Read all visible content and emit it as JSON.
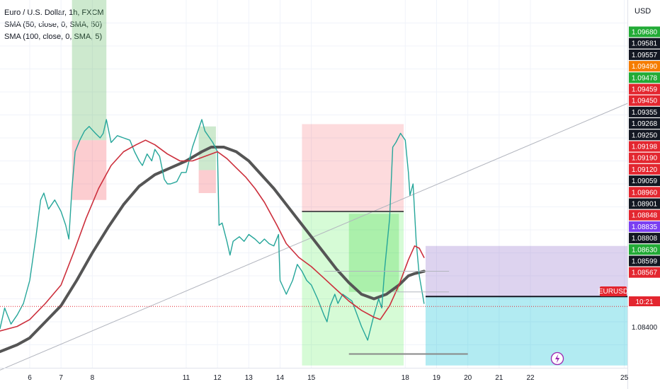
{
  "legend": {
    "symbol": "Euro / U.S. Dollar, 1h, FXCM",
    "sma1": "SMA (50, close, 0, SMA, 50)",
    "sma2": "SMA (100, close, 0, SMA, 5)"
  },
  "currency": "USD",
  "chart_data": {
    "type": "line",
    "title": "Euro / U.S. Dollar, 1h, FXCM",
    "ylim": [
      1.083,
      1.099
    ],
    "x_ticks": [
      {
        "t": 6,
        "label": "6"
      },
      {
        "t": 7,
        "label": "7"
      },
      {
        "t": 8,
        "label": "8"
      },
      {
        "t": 11,
        "label": "11"
      },
      {
        "t": 12,
        "label": "12"
      },
      {
        "t": 13,
        "label": "13"
      },
      {
        "t": 14,
        "label": "14"
      },
      {
        "t": 15,
        "label": "15"
      },
      {
        "t": 18,
        "label": "18"
      },
      {
        "t": 19,
        "label": "19"
      },
      {
        "t": 20,
        "label": "20"
      },
      {
        "t": 21,
        "label": "21"
      },
      {
        "t": 22,
        "label": "22"
      },
      {
        "t": 25,
        "label": "25"
      }
    ],
    "x_range": [
      5.05,
      25.1
    ],
    "price_series": {
      "name": "EURUSD",
      "color": "#26a69a",
      "points": [
        [
          5.05,
          1.0847
        ],
        [
          5.2,
          1.0856
        ],
        [
          5.4,
          1.0849
        ],
        [
          5.6,
          1.0853
        ],
        [
          5.8,
          1.0858
        ],
        [
          6.0,
          1.0868
        ],
        [
          6.2,
          1.0887
        ],
        [
          6.35,
          1.0903
        ],
        [
          6.45,
          1.0906
        ],
        [
          6.6,
          1.0899
        ],
        [
          6.8,
          1.0903
        ],
        [
          7.0,
          1.0898
        ],
        [
          7.15,
          1.0892
        ],
        [
          7.25,
          1.0886
        ],
        [
          7.35,
          1.0908
        ],
        [
          7.45,
          1.0924
        ],
        [
          7.6,
          1.0929
        ],
        [
          7.75,
          1.0933
        ],
        [
          7.9,
          1.0935
        ],
        [
          8.1,
          1.0932
        ],
        [
          8.25,
          1.093
        ],
        [
          8.35,
          1.0932
        ],
        [
          8.45,
          1.0938
        ],
        [
          8.6,
          1.0928
        ],
        [
          8.8,
          1.0931
        ],
        [
          9.0,
          1.093
        ],
        [
          9.2,
          1.0929
        ],
        [
          9.35,
          1.0924
        ],
        [
          9.5,
          1.092
        ],
        [
          9.6,
          1.0918
        ],
        [
          9.75,
          1.0923
        ],
        [
          9.9,
          1.092
        ],
        [
          10.0,
          1.0925
        ],
        [
          10.15,
          1.0922
        ],
        [
          10.3,
          1.0912
        ],
        [
          10.4,
          1.091
        ],
        [
          10.5,
          1.091
        ],
        [
          10.7,
          1.0911
        ],
        [
          10.85,
          1.0915
        ],
        [
          11.0,
          1.0915
        ],
        [
          11.2,
          1.0926
        ],
        [
          11.4,
          1.0934
        ],
        [
          11.5,
          1.0938
        ],
        [
          11.6,
          1.0933
        ],
        [
          11.75,
          1.093
        ],
        [
          11.85,
          1.0928
        ],
        [
          12.0,
          1.0924
        ],
        [
          12.05,
          1.0892
        ],
        [
          12.15,
          1.0893
        ],
        [
          12.3,
          1.0885
        ],
        [
          12.4,
          1.0879
        ],
        [
          12.5,
          1.0885
        ],
        [
          12.7,
          1.0887
        ],
        [
          12.85,
          1.0885
        ],
        [
          13.0,
          1.0888
        ],
        [
          13.2,
          1.0886
        ],
        [
          13.35,
          1.0884
        ],
        [
          13.5,
          1.0886
        ],
        [
          13.65,
          1.0884
        ],
        [
          13.8,
          1.0883
        ],
        [
          13.95,
          1.0888
        ],
        [
          14.0,
          1.0868
        ],
        [
          14.2,
          1.0862
        ],
        [
          14.4,
          1.0868
        ],
        [
          14.55,
          1.0875
        ],
        [
          14.7,
          1.0872
        ],
        [
          14.85,
          1.0868
        ],
        [
          15.0,
          1.0866
        ],
        [
          15.2,
          1.086
        ],
        [
          15.4,
          1.0853
        ],
        [
          15.5,
          1.085
        ],
        [
          15.6,
          1.0857
        ],
        [
          15.75,
          1.0862
        ],
        [
          15.85,
          1.0858
        ],
        [
          16.0,
          1.0862
        ],
        [
          16.3,
          1.0859
        ],
        [
          16.6,
          1.0848
        ],
        [
          16.8,
          1.0842
        ],
        [
          17.0,
          1.0853
        ],
        [
          17.15,
          1.086
        ],
        [
          17.25,
          1.0856
        ],
        [
          17.35,
          1.0874
        ],
        [
          17.5,
          1.0895
        ],
        [
          17.6,
          1.0926
        ],
        [
          17.7,
          1.0928
        ],
        [
          17.85,
          1.0932
        ],
        [
          18.0,
          1.0929
        ],
        [
          18.1,
          1.0915
        ],
        [
          18.15,
          1.0905
        ],
        [
          18.25,
          1.091
        ],
        [
          18.35,
          1.0885
        ],
        [
          18.45,
          1.087
        ],
        [
          18.55,
          1.0862
        ],
        [
          18.6,
          1.0858
        ]
      ]
    },
    "sma_red": {
      "name": "SMA (50, close, 0, SMA, 50)",
      "color": "#cc2f3c",
      "points": [
        [
          5.05,
          1.0846
        ],
        [
          5.6,
          1.0848
        ],
        [
          6.0,
          1.0851
        ],
        [
          6.5,
          1.0858
        ],
        [
          7.0,
          1.0866
        ],
        [
          7.4,
          1.088
        ],
        [
          7.8,
          1.0895
        ],
        [
          8.2,
          1.0908
        ],
        [
          8.6,
          1.0918
        ],
        [
          9.0,
          1.0924
        ],
        [
          9.4,
          1.0927
        ],
        [
          9.7,
          1.0929
        ],
        [
          10.0,
          1.0927
        ],
        [
          10.4,
          1.0923
        ],
        [
          10.8,
          1.092
        ],
        [
          11.2,
          1.092
        ],
        [
          11.6,
          1.0922
        ],
        [
          12.0,
          1.0924
        ],
        [
          12.3,
          1.0921
        ],
        [
          12.6,
          1.0917
        ],
        [
          12.9,
          1.0913
        ],
        [
          13.2,
          1.0908
        ],
        [
          13.5,
          1.0902
        ],
        [
          13.9,
          1.0892
        ],
        [
          14.2,
          1.0884
        ],
        [
          14.6,
          1.0878
        ],
        [
          15.0,
          1.0874
        ],
        [
          15.4,
          1.0869
        ],
        [
          15.8,
          1.0864
        ],
        [
          16.2,
          1.0859
        ],
        [
          16.6,
          1.0855
        ],
        [
          17.0,
          1.0852
        ],
        [
          17.2,
          1.0851
        ],
        [
          17.5,
          1.0857
        ],
        [
          17.8,
          1.0866
        ],
        [
          18.1,
          1.0877
        ],
        [
          18.3,
          1.0883
        ],
        [
          18.45,
          1.0882
        ],
        [
          18.6,
          1.0878
        ]
      ]
    },
    "sma_gray": {
      "name": "SMA (100, close, 0, SMA, 5)",
      "color": "#555555",
      "points": [
        [
          5.05,
          1.0837
        ],
        [
          5.6,
          1.084
        ],
        [
          6.0,
          1.0843
        ],
        [
          6.5,
          1.085
        ],
        [
          7.0,
          1.0857
        ],
        [
          7.5,
          1.0868
        ],
        [
          8.0,
          1.088
        ],
        [
          8.5,
          1.0891
        ],
        [
          9.0,
          1.0901
        ],
        [
          9.5,
          1.0909
        ],
        [
          10.0,
          1.0914
        ],
        [
          10.5,
          1.0917
        ],
        [
          11.0,
          1.092
        ],
        [
          11.5,
          1.0924
        ],
        [
          11.8,
          1.0926
        ],
        [
          12.2,
          1.0926
        ],
        [
          12.6,
          1.0924
        ],
        [
          13.0,
          1.092
        ],
        [
          13.4,
          1.0914
        ],
        [
          13.8,
          1.0908
        ],
        [
          14.2,
          1.0901
        ],
        [
          14.6,
          1.0894
        ],
        [
          15.0,
          1.0887
        ],
        [
          15.4,
          1.088
        ],
        [
          15.8,
          1.0873
        ],
        [
          16.2,
          1.0867
        ],
        [
          16.6,
          1.0862
        ],
        [
          17.0,
          1.086
        ],
        [
          17.4,
          1.0862
        ],
        [
          17.8,
          1.0866
        ],
        [
          18.1,
          1.087
        ],
        [
          18.3,
          1.0871
        ],
        [
          18.6,
          1.0872
        ]
      ]
    },
    "trendline": {
      "from": [
        5.05,
        1.0829
      ],
      "to": [
        25.1,
        1.0945
      ],
      "color": "#b2b5be"
    },
    "price_badges": [
      {
        "label": "1.09680",
        "bg": "#22ab36",
        "fg": "#ffffff"
      },
      {
        "label": "1.09581",
        "bg": "#131722",
        "fg": "#ffffff"
      },
      {
        "label": "1.09557",
        "bg": "#131722",
        "fg": "#ffffff"
      },
      {
        "label": "1.09490",
        "bg": "#f57c00",
        "fg": "#ffffff"
      },
      {
        "label": "1.09478",
        "bg": "#22ab36",
        "fg": "#ffffff"
      },
      {
        "label": "1.09459",
        "bg": "#e3262f",
        "fg": "#ffffff"
      },
      {
        "label": "1.09450",
        "bg": "#e3262f",
        "fg": "#ffffff"
      },
      {
        "label": "1.09355",
        "bg": "#131722",
        "fg": "#ffffff"
      },
      {
        "label": "1.09268",
        "bg": "#131722",
        "fg": "#ffffff"
      },
      {
        "label": "1.09250",
        "bg": "#131722",
        "fg": "#ffffff"
      },
      {
        "label": "1.09198",
        "bg": "#e3262f",
        "fg": "#ffffff"
      },
      {
        "label": "1.09190",
        "bg": "#e3262f",
        "fg": "#ffffff"
      },
      {
        "label": "1.09120",
        "bg": "#e3262f",
        "fg": "#ffffff"
      },
      {
        "label": "1.09059",
        "bg": "#131722",
        "fg": "#ffffff"
      },
      {
        "label": "1.08960",
        "bg": "#e3262f",
        "fg": "#ffffff"
      },
      {
        "label": "1.08901",
        "bg": "#131722",
        "fg": "#ffffff"
      },
      {
        "label": "1.08848",
        "bg": "#e3262f",
        "fg": "#ffffff"
      },
      {
        "label": "1.08835",
        "bg": "#7b3ff2",
        "fg": "#ffffff"
      },
      {
        "label": "1.08808",
        "bg": "#131722",
        "fg": "#ffffff"
      },
      {
        "label": "1.08630",
        "bg": "#22ab36",
        "fg": "#ffffff"
      },
      {
        "label": "1.08599",
        "bg": "#131722",
        "fg": "#ffffff"
      },
      {
        "label": "1.08567",
        "bg": "#e3262f",
        "fg": "#ffffff"
      }
    ],
    "axis_labels": [
      {
        "label": "1.08400"
      }
    ],
    "current_price": {
      "symbol": "EURUSD",
      "countdown": "10:21",
      "color": "#e3262f"
    }
  }
}
